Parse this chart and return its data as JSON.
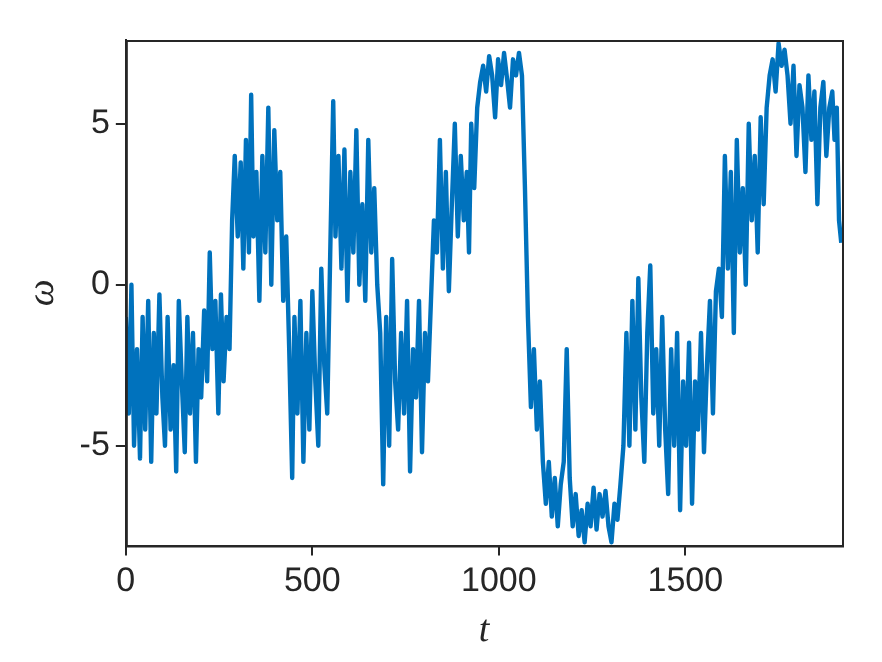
{
  "chart_data": {
    "type": "line",
    "xlabel": "t",
    "ylabel": "ω",
    "xlim": [
      0,
      1920
    ],
    "ylim": [
      -8.1,
      7.6
    ],
    "xticks": [
      0,
      500,
      1000,
      1500
    ],
    "yticks": [
      -5,
      0,
      5
    ],
    "grid": false,
    "legend": false,
    "marker": "none",
    "line_style": "solid",
    "series": [
      {
        "color": "#0072bd",
        "x": [
          0,
          8,
          15,
          22,
          30,
          38,
          45,
          52,
          60,
          68,
          75,
          82,
          90,
          98,
          105,
          112,
          120,
          128,
          135,
          142,
          150,
          158,
          165,
          172,
          180,
          188,
          195,
          202,
          210,
          218,
          225,
          232,
          240,
          248,
          255,
          262,
          270,
          278,
          285,
          292,
          300,
          308,
          315,
          322,
          330,
          336,
          342,
          350,
          358,
          366,
          374,
          382,
          390,
          398,
          406,
          414,
          422,
          430,
          438,
          446,
          452,
          460,
          468,
          476,
          484,
          492,
          500,
          508,
          516,
          524,
          532,
          540,
          548,
          556,
          562,
          570,
          578,
          586,
          594,
          602,
          610,
          618,
          626,
          634,
          642,
          650,
          658,
          666,
          674,
          682,
          690,
          698,
          706,
          714,
          722,
          730,
          738,
          746,
          754,
          762,
          770,
          778,
          786,
          794,
          802,
          810,
          818,
          826,
          834,
          842,
          850,
          858,
          866,
          874,
          882,
          890,
          898,
          906,
          914,
          920,
          926,
          934,
          942,
          950,
          958,
          966,
          974,
          982,
          990,
          998,
          1006,
          1014,
          1022,
          1030,
          1038,
          1046,
          1054,
          1062,
          1070,
          1078,
          1086,
          1094,
          1102,
          1110,
          1118,
          1126,
          1134,
          1142,
          1150,
          1158,
          1166,
          1174,
          1182,
          1190,
          1198,
          1206,
          1214,
          1222,
          1230,
          1238,
          1246,
          1254,
          1262,
          1270,
          1278,
          1286,
          1294,
          1302,
          1310,
          1318,
          1326,
          1334,
          1342,
          1350,
          1358,
          1366,
          1374,
          1382,
          1390,
          1398,
          1406,
          1414,
          1422,
          1430,
          1438,
          1446,
          1454,
          1462,
          1470,
          1478,
          1486,
          1494,
          1502,
          1510,
          1518,
          1526,
          1534,
          1542,
          1550,
          1558,
          1566,
          1574,
          1582,
          1590,
          1598,
          1606,
          1614,
          1622,
          1630,
          1638,
          1646,
          1654,
          1662,
          1670,
          1678,
          1686,
          1694,
          1702,
          1710,
          1718,
          1726,
          1734,
          1742,
          1750,
          1758,
          1766,
          1774,
          1782,
          1790,
          1798,
          1806,
          1814,
          1822,
          1830,
          1838,
          1846,
          1854,
          1862,
          1870,
          1878,
          1886,
          1894,
          1900,
          1906,
          1912,
          1918
        ],
        "values": [
          -1,
          -4,
          0,
          -5,
          -2,
          -5.4,
          -1,
          -4.5,
          -0.5,
          -5.5,
          -1.5,
          -4,
          -0.3,
          -3.5,
          -5,
          -1,
          -4.5,
          -2.5,
          -5.8,
          -0.5,
          -3,
          -5.2,
          -1,
          -4,
          -1.5,
          -5.5,
          -2,
          -3.5,
          -0.8,
          -3,
          1,
          -2,
          -0.5,
          -4,
          -0.3,
          -3,
          -1,
          -2,
          2,
          4,
          1.5,
          3.8,
          0.5,
          4.5,
          1,
          5.9,
          1.5,
          3.5,
          -0.5,
          4,
          1,
          5.5,
          0,
          4.8,
          2,
          3.5,
          -0.5,
          1.5,
          -2,
          -6,
          -1,
          -4,
          -0.5,
          -5.5,
          -1.5,
          -4.5,
          -0.2,
          -3,
          -5,
          0.5,
          -2.5,
          -4,
          1,
          5.7,
          1.5,
          4,
          0.5,
          4.2,
          -0.5,
          3.5,
          1,
          4.8,
          0,
          2.5,
          -0.5,
          4.5,
          1,
          3,
          0,
          -1.5,
          -6.2,
          -1,
          -5,
          0.8,
          -3,
          -4.5,
          -1.5,
          -4,
          -0.5,
          -5.8,
          -2,
          -3.5,
          -0.5,
          -5.2,
          -1.5,
          -3,
          -0.5,
          2,
          1,
          4.5,
          0.5,
          3.5,
          -0.2,
          2.5,
          5,
          1.5,
          4,
          2,
          3.5,
          1,
          5,
          3,
          5.5,
          6.3,
          6.8,
          6,
          7.1,
          6.5,
          5.2,
          7,
          6.2,
          7.2,
          6.4,
          5.5,
          7,
          6.5,
          7.2,
          6.5,
          3,
          -1,
          -3.8,
          -2,
          -4.5,
          -3,
          -5.5,
          -6.8,
          -5.5,
          -7.2,
          -6,
          -7.5,
          -6.2,
          -5.5,
          -2,
          -6,
          -7.5,
          -6.5,
          -7.8,
          -7,
          -8,
          -6.8,
          -7.5,
          -6.3,
          -7.6,
          -6.5,
          -7.2,
          -6.4,
          -7.5,
          -8,
          -6.8,
          -7.3,
          -6.2,
          -5,
          -1.5,
          -5,
          -0.5,
          -4.5,
          0.2,
          -3.5,
          -5.5,
          -1.5,
          0.6,
          -4,
          -2,
          -5,
          -1,
          -4.5,
          -6.5,
          -2,
          -5,
          -1.5,
          -7,
          -3,
          -5,
          -1.8,
          -6.8,
          -3,
          -4.5,
          -1.5,
          -5.2,
          -2.5,
          -0.5,
          -4,
          -0.2,
          0.5,
          -1,
          4,
          0.5,
          3.5,
          -1.5,
          4.5,
          1,
          3,
          0,
          5,
          2,
          4,
          1,
          5.2,
          2.5,
          5.5,
          6.5,
          7,
          6,
          7.5,
          6.8,
          7.3,
          6.5,
          5,
          6.8,
          4,
          6.2,
          5.5,
          3.5,
          6.5,
          4.5,
          6,
          2.5,
          5.5,
          6.3,
          4,
          5.5,
          6,
          4.5,
          5.5,
          2,
          1.3
        ]
      }
    ]
  }
}
